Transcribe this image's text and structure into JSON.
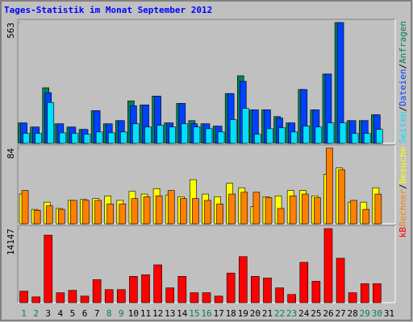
{
  "chart_data": [
    {
      "type": "bar",
      "title": "Tages-Statistik im Monat September 2012",
      "ylim": [
        0,
        563
      ],
      "yticks": [
        563
      ],
      "legend_separator": "/",
      "series": [
        {
          "name": "Anfragen",
          "color": "#00805c",
          "values": [
            95,
            76,
            259,
            91,
            76,
            65,
            152,
            91,
            106,
            198,
            179,
            220,
            95,
            186,
            106,
            91,
            80,
            232,
            315,
            156,
            156,
            125,
            95,
            251,
            156,
            323,
            563,
            106,
            106,
            133,
            0
          ]
        },
        {
          "name": "Dateien",
          "color": "#0040ff",
          "values": [
            95,
            76,
            236,
            91,
            76,
            65,
            152,
            91,
            106,
            175,
            179,
            220,
            95,
            186,
            91,
            91,
            80,
            232,
            289,
            156,
            156,
            118,
            95,
            251,
            156,
            323,
            563,
            106,
            106,
            133,
            0
          ]
        },
        {
          "name": "Seiten",
          "color": "#00e0ff",
          "values": [
            46,
            46,
            190,
            49,
            46,
            42,
            53,
            49,
            53,
            91,
            76,
            84,
            76,
            91,
            76,
            68,
            53,
            110,
            163,
            42,
            68,
            72,
            53,
            80,
            76,
            95,
            95,
            46,
            46,
            65,
            0
          ]
        }
      ]
    },
    {
      "type": "bar",
      "ylim": [
        0,
        84
      ],
      "yticks": [
        84
      ],
      "legend_separator": "/",
      "series": [
        {
          "name": "Besuche",
          "color": "#ffff00",
          "values": [
            33,
            16,
            24,
            17,
            26,
            27,
            28,
            31,
            26,
            36,
            33,
            39,
            32,
            30,
            49,
            33,
            30,
            45,
            40,
            19,
            30,
            31,
            37,
            37,
            31,
            55,
            62,
            24,
            24,
            40,
            0
          ]
        },
        {
          "name": "Rechner",
          "color": "#ff8000",
          "values": [
            37,
            15,
            20,
            16,
            26,
            26,
            26,
            22,
            22,
            28,
            30,
            31,
            37,
            28,
            28,
            26,
            22,
            33,
            35,
            35,
            29,
            17,
            31,
            33,
            29,
            84,
            60,
            26,
            16,
            33,
            0
          ]
        }
      ]
    },
    {
      "type": "bar",
      "ylim": [
        0,
        14147
      ],
      "yticks": [
        14147
      ],
      "categories": [
        "1",
        "2",
        "3",
        "4",
        "5",
        "6",
        "7",
        "8",
        "9",
        "10",
        "11",
        "12",
        "13",
        "14",
        "15",
        "16",
        "17",
        "18",
        "19",
        "20",
        "21",
        "22",
        "23",
        "24",
        "25",
        "26",
        "27",
        "28",
        "29",
        "30",
        "31"
      ],
      "category_colors": [
        "#00805c",
        "#00805c",
        "#000000",
        "#000000",
        "#000000",
        "#000000",
        "#000000",
        "#00805c",
        "#00805c",
        "#000000",
        "#000000",
        "#000000",
        "#000000",
        "#000000",
        "#00805c",
        "#00805c",
        "#000000",
        "#000000",
        "#000000",
        "#000000",
        "#000000",
        "#00805c",
        "#00805c",
        "#000000",
        "#000000",
        "#000000",
        "#000000",
        "#000000",
        "#00805c",
        "#00805c",
        "#000000"
      ],
      "series": [
        {
          "name": "kB",
          "color": "#ff0000",
          "values": [
            2200,
            1100,
            12900,
            1900,
            2360,
            1260,
            4400,
            2500,
            2500,
            5030,
            5340,
            7230,
            2830,
            5030,
            1900,
            1900,
            1260,
            5660,
            8800,
            5030,
            4720,
            2830,
            1570,
            7700,
            4090,
            14147,
            8490,
            1900,
            3620,
            3620,
            0
          ]
        }
      ]
    }
  ]
}
